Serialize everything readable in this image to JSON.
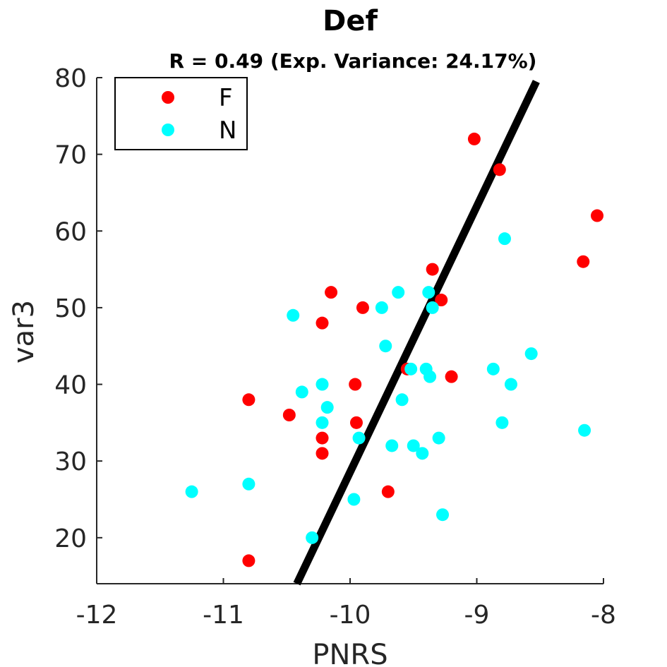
{
  "chart_data": {
    "type": "scatter",
    "title": "Def",
    "subtitle": "R = 0.49 (Exp. Variance: 24.17%)",
    "xlabel": "PNRS",
    "ylabel": "var3",
    "xlim": [
      -12,
      -8
    ],
    "ylim": [
      14,
      80
    ],
    "xticks": [
      -12,
      -11,
      -10,
      -9,
      -8
    ],
    "xtick_labels": [
      "-12",
      "-11",
      "-10",
      "-9",
      "-8"
    ],
    "yticks": [
      20,
      30,
      40,
      50,
      60,
      70,
      80
    ],
    "ytick_labels": [
      "20",
      "30",
      "40",
      "50",
      "60",
      "70",
      "80"
    ],
    "grid": false,
    "legend_position": "top-left",
    "series": [
      {
        "name": "F",
        "color": "#ff0000",
        "points": [
          [
            -10.8,
            38
          ],
          [
            -10.8,
            17
          ],
          [
            -10.48,
            36
          ],
          [
            -10.22,
            48
          ],
          [
            -10.22,
            33
          ],
          [
            -10.22,
            31
          ],
          [
            -10.15,
            52
          ],
          [
            -9.96,
            40
          ],
          [
            -9.95,
            35
          ],
          [
            -9.9,
            50
          ],
          [
            -9.7,
            26
          ],
          [
            -9.55,
            42
          ],
          [
            -9.35,
            55
          ],
          [
            -9.28,
            51
          ],
          [
            -9.2,
            41
          ],
          [
            -9.02,
            72
          ],
          [
            -8.82,
            68
          ],
          [
            -8.16,
            56
          ],
          [
            -8.05,
            62
          ]
        ]
      },
      {
        "name": "N",
        "color": "#00ffff",
        "points": [
          [
            -11.25,
            26
          ],
          [
            -10.8,
            27
          ],
          [
            -10.45,
            49
          ],
          [
            -10.38,
            39
          ],
          [
            -10.3,
            20
          ],
          [
            -10.22,
            40
          ],
          [
            -10.22,
            35
          ],
          [
            -10.18,
            37
          ],
          [
            -9.97,
            25
          ],
          [
            -9.93,
            33
          ],
          [
            -9.75,
            50
          ],
          [
            -9.72,
            45
          ],
          [
            -9.67,
            32
          ],
          [
            -9.62,
            52
          ],
          [
            -9.59,
            38
          ],
          [
            -9.52,
            42
          ],
          [
            -9.5,
            32
          ],
          [
            -9.43,
            31
          ],
          [
            -9.4,
            42
          ],
          [
            -9.38,
            52
          ],
          [
            -9.37,
            41
          ],
          [
            -9.35,
            50
          ],
          [
            -9.3,
            33
          ],
          [
            -9.27,
            23
          ],
          [
            -8.87,
            42
          ],
          [
            -8.8,
            35
          ],
          [
            -8.78,
            59
          ],
          [
            -8.73,
            40
          ],
          [
            -8.57,
            44
          ],
          [
            -8.15,
            34
          ]
        ]
      }
    ],
    "fit_line": {
      "color": "#000000",
      "x": [
        -10.42,
        -8.53
      ],
      "y": [
        14,
        79.5
      ]
    }
  }
}
